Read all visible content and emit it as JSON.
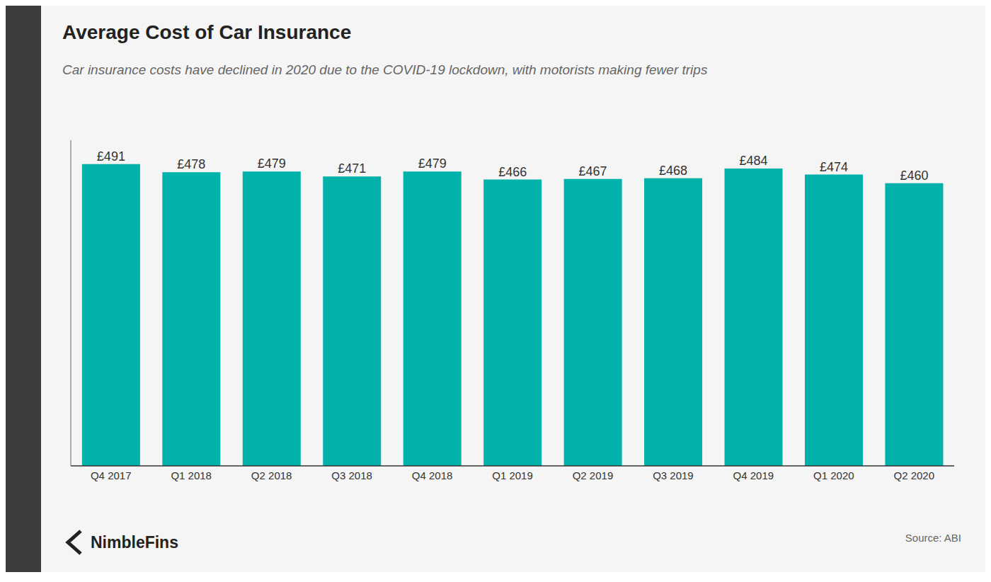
{
  "chart_data": {
    "type": "bar",
    "title": "Average Cost of Car Insurance",
    "subtitle": "Car insurance costs have declined in 2020 due to the COVID-19 lockdown, with motorists making fewer trips",
    "categories": [
      "Q4 2017",
      "Q1 2018",
      "Q2 2018",
      "Q3 2018",
      "Q4 2018",
      "Q1 2019",
      "Q2 2019",
      "Q3 2019",
      "Q4 2019",
      "Q1 2020",
      "Q2 2020"
    ],
    "values": [
      491,
      478,
      479,
      471,
      479,
      466,
      467,
      468,
      484,
      474,
      460
    ],
    "value_labels": [
      "£491",
      "£478",
      "£479",
      "£471",
      "£479",
      "£466",
      "£467",
      "£468",
      "£484",
      "£474",
      "£460"
    ],
    "color": "#00B2A9",
    "ylim": [
      0,
      530
    ],
    "data_labels": true,
    "tick_labels": "x",
    "annotations": [
      "Source: ABI",
      "NimbleFins"
    ]
  }
}
